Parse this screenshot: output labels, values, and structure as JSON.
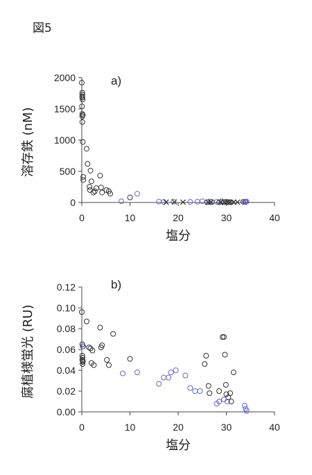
{
  "figure_label": "図5",
  "chart_data": [
    {
      "type": "scatter",
      "panel_label": "a)",
      "xlabel": "塩分",
      "ylabel": "溶存鉄 (nM)",
      "xlim": [
        0,
        40
      ],
      "ylim": [
        0,
        2000
      ],
      "xticks": [
        0,
        10,
        20,
        30,
        40
      ],
      "yticks": [
        0,
        500,
        1000,
        1500,
        2000
      ],
      "grid": false,
      "legend": "none",
      "series": [
        {
          "marker": "circle",
          "color": "#333333",
          "points": [
            [
              0,
              1920
            ],
            [
              0.1,
              1760
            ],
            [
              0.1,
              1730
            ],
            [
              0.1,
              1700
            ],
            [
              0.1,
              1680
            ],
            [
              0.15,
              1650
            ],
            [
              0.05,
              1540
            ],
            [
              0.1,
              1420
            ],
            [
              0.2,
              1400
            ],
            [
              0.1,
              1380
            ],
            [
              0.1,
              1290
            ],
            [
              0.2,
              970
            ],
            [
              0.3,
              410
            ],
            [
              0.3,
              360
            ],
            [
              1,
              860
            ],
            [
              1.2,
              620
            ],
            [
              1.8,
              510
            ],
            [
              1.6,
              250
            ],
            [
              1.7,
              200
            ],
            [
              2,
              340
            ],
            [
              2.4,
              160
            ],
            [
              2.7,
              180
            ],
            [
              3,
              230
            ],
            [
              3.8,
              430
            ],
            [
              4,
              240
            ],
            [
              4.2,
              160
            ],
            [
              5.1,
              200
            ],
            [
              5.6,
              180
            ],
            [
              5.9,
              140
            ],
            [
              10,
              80
            ],
            [
              26,
              5
            ],
            [
              27,
              8
            ],
            [
              28.5,
              3
            ],
            [
              29,
              15
            ],
            [
              29.5,
              5
            ],
            [
              30,
              10
            ],
            [
              30.5,
              6
            ],
            [
              31,
              4
            ],
            [
              33.5,
              10
            ],
            [
              34,
              8
            ]
          ]
        },
        {
          "marker": "circle",
          "color": "#6666cc",
          "points": [
            [
              8.2,
              20
            ],
            [
              11.5,
              140
            ],
            [
              16,
              15
            ],
            [
              17,
              10
            ],
            [
              19,
              15
            ],
            [
              22.5,
              10
            ],
            [
              24,
              12
            ],
            [
              25,
              20
            ],
            [
              26.5,
              15
            ],
            [
              28,
              10
            ],
            [
              29,
              20
            ],
            [
              33.8,
              12
            ],
            [
              34.2,
              15
            ]
          ]
        },
        {
          "marker": "x",
          "color": "#333333",
          "points": [
            [
              17.5,
              5
            ],
            [
              19.2,
              8
            ],
            [
              21,
              5
            ],
            [
              26.2,
              3
            ],
            [
              26.8,
              5
            ],
            [
              28.8,
              5
            ],
            [
              29.6,
              2
            ],
            [
              30.2,
              6
            ],
            [
              30.7,
              3
            ],
            [
              31.5,
              4
            ],
            [
              32.3,
              5
            ]
          ]
        }
      ]
    },
    {
      "type": "scatter",
      "panel_label": "b)",
      "xlabel": "塩分",
      "ylabel": "腐植様蛍光 (RU)",
      "xlim": [
        0,
        40
      ],
      "ylim": [
        0,
        0.12
      ],
      "xticks": [
        0,
        10,
        20,
        30,
        40
      ],
      "yticks": [
        0,
        0.02,
        0.04,
        0.06,
        0.08,
        0.1,
        0.12
      ],
      "ytick_labels": [
        "0.00",
        "0.02",
        "0.04",
        "0.06",
        "0.08",
        "0.10",
        "0.12"
      ],
      "grid": false,
      "legend": "none",
      "series": [
        {
          "marker": "circle",
          "color": "#333333",
          "points": [
            [
              0,
              0.096
            ],
            [
              0.1,
              0.065
            ],
            [
              0.2,
              0.063
            ],
            [
              0.1,
              0.054
            ],
            [
              0.15,
              0.052
            ],
            [
              0.1,
              0.05
            ],
            [
              0.2,
              0.049
            ],
            [
              0.2,
              0.048
            ],
            [
              0.15,
              0.046
            ],
            [
              1,
              0.087
            ],
            [
              1.5,
              0.062
            ],
            [
              1.8,
              0.061
            ],
            [
              2,
              0.047
            ],
            [
              2.2,
              0.059
            ],
            [
              2.5,
              0.045
            ],
            [
              3.8,
              0.081
            ],
            [
              4,
              0.062
            ],
            [
              4.2,
              0.064
            ],
            [
              5.2,
              0.05
            ],
            [
              5.6,
              0.045
            ],
            [
              6.5,
              0.075
            ],
            [
              10,
              0.051
            ],
            [
              25.5,
              0.046
            ],
            [
              25.8,
              0.054
            ],
            [
              26.3,
              0.025
            ],
            [
              26.5,
              0.018
            ],
            [
              28.5,
              0.02
            ],
            [
              29.2,
              0.072
            ],
            [
              29.5,
              0.072
            ],
            [
              29.7,
              0.055
            ],
            [
              29.9,
              0.026
            ],
            [
              30,
              0.017
            ],
            [
              30.4,
              0.014
            ],
            [
              30.8,
              0.018
            ],
            [
              31,
              0.01
            ],
            [
              31.5,
              0.038
            ]
          ]
        },
        {
          "marker": "circle",
          "color": "#6666cc",
          "points": [
            [
              0.3,
              0.063
            ],
            [
              8.5,
              0.037
            ],
            [
              11.5,
              0.038
            ],
            [
              16,
              0.027
            ],
            [
              17,
              0.033
            ],
            [
              18,
              0.033
            ],
            [
              18.5,
              0.038
            ],
            [
              19.5,
              0.04
            ],
            [
              21.5,
              0.035
            ],
            [
              22.5,
              0.023
            ],
            [
              23.5,
              0.02
            ],
            [
              24.5,
              0.02
            ],
            [
              28,
              0.008
            ],
            [
              28.5,
              0.01
            ],
            [
              29.5,
              0.012
            ],
            [
              30.2,
              0.01
            ],
            [
              33.8,
              0.006
            ],
            [
              34,
              0.003
            ],
            [
              34.2,
              0.001
            ]
          ]
        }
      ]
    }
  ]
}
